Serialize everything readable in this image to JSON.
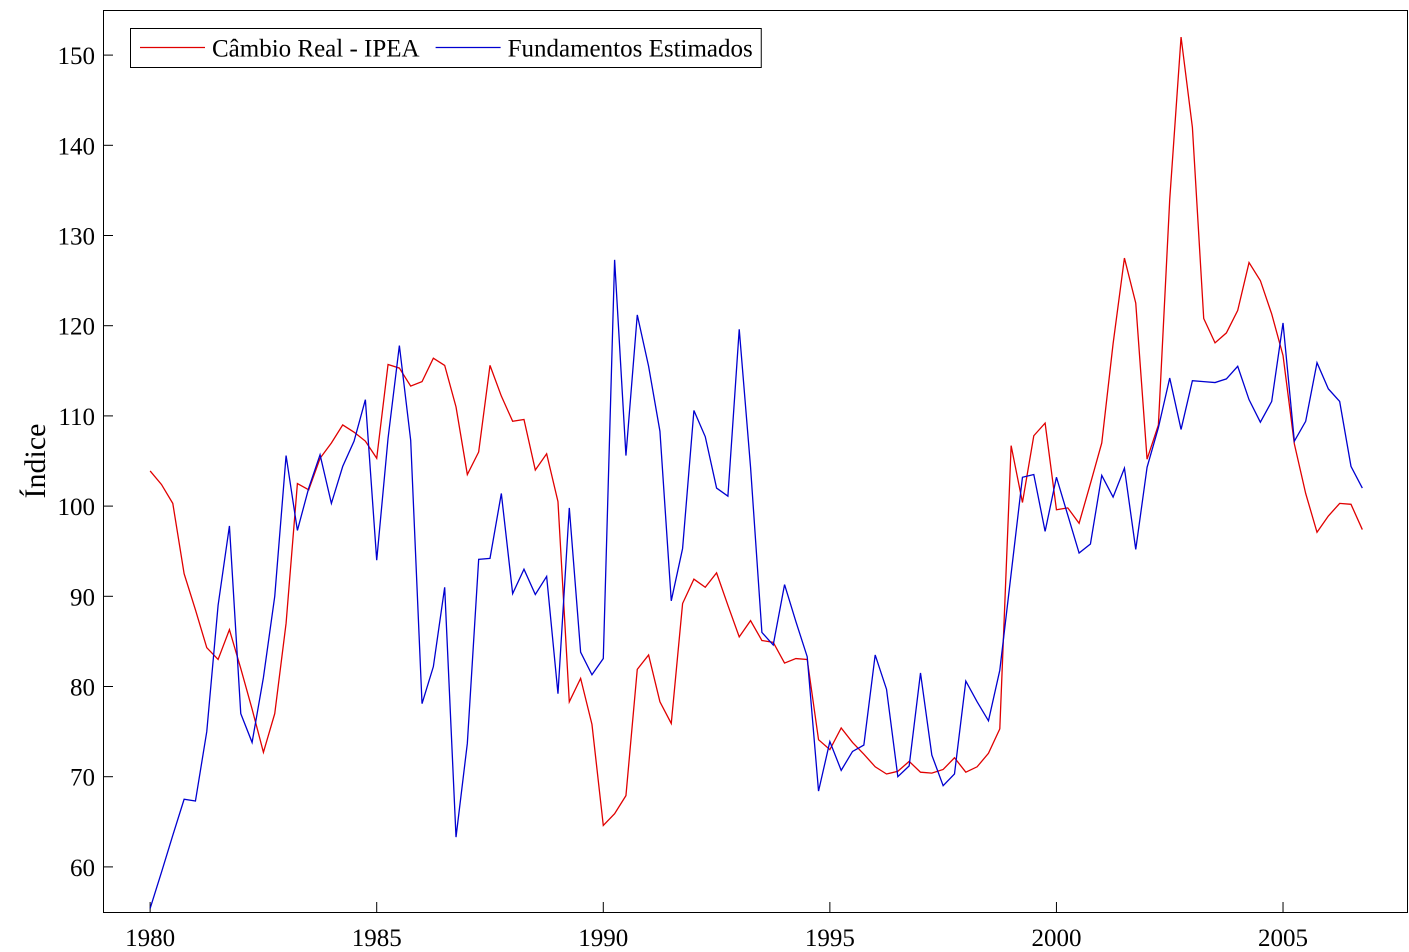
{
  "chart_data": {
    "type": "line",
    "y_label": "Índice",
    "xlim": [
      1978.96,
      2007.78
    ],
    "ylim": [
      55,
      155
    ],
    "xticks": [
      1980,
      1985,
      1990,
      1995,
      2000,
      2005
    ],
    "yticks": [
      60,
      70,
      80,
      90,
      100,
      110,
      120,
      130,
      140,
      150
    ],
    "legend": "top-left",
    "x": [
      1980,
      1980.25,
      1980.5,
      1980.75,
      1981,
      1981.25,
      1981.5,
      1981.75,
      1982,
      1982.25,
      1982.5,
      1982.75,
      1983,
      1983.25,
      1983.5,
      1983.75,
      1984,
      1984.25,
      1984.5,
      1984.75,
      1985,
      1985.25,
      1985.5,
      1985.75,
      1986,
      1986.25,
      1986.5,
      1986.75,
      1987,
      1987.25,
      1987.5,
      1987.75,
      1988,
      1988.25,
      1988.5,
      1988.75,
      1989,
      1989.25,
      1989.5,
      1989.75,
      1990,
      1990.25,
      1990.5,
      1990.75,
      1991,
      1991.25,
      1991.5,
      1991.75,
      1992,
      1992.25,
      1992.5,
      1992.75,
      1993,
      1993.25,
      1993.5,
      1993.75,
      1994,
      1994.25,
      1994.5,
      1994.75,
      1995,
      1995.25,
      1995.5,
      1995.75,
      1996,
      1996.25,
      1996.5,
      1996.75,
      1997,
      1997.25,
      1997.5,
      1997.75,
      1998,
      1998.25,
      1998.5,
      1998.75,
      1999,
      1999.25,
      1999.5,
      1999.75,
      2000,
      2000.25,
      2000.5,
      2000.75,
      2001,
      2001.25,
      2001.5,
      2001.75,
      2002,
      2002.25,
      2002.5,
      2002.75,
      2003,
      2003.25,
      2003.5,
      2003.75,
      2004,
      2004.25,
      2004.5,
      2004.75,
      2005,
      2005.25,
      2005.5,
      2005.75,
      2006,
      2006.25,
      2006.5,
      2006.75
    ],
    "series": [
      {
        "name": "Câmbio Real - IPEA",
        "color": "#e00000",
        "values": [
          103.9,
          102.4,
          100.3,
          92.5,
          88.5,
          84.3,
          83,
          86.3,
          82,
          77.5,
          72.7,
          77,
          87,
          102.5,
          101.8,
          105.3,
          107,
          109,
          108.2,
          107.2,
          105.3,
          115.7,
          115.3,
          113.3,
          113.8,
          116.4,
          115.6,
          111,
          103.5,
          106,
          115.6,
          112.2,
          109.4,
          109.6,
          104,
          105.8,
          100.5,
          78.3,
          80.9,
          75.8,
          64.6,
          65.9,
          67.9,
          81.9,
          83.5,
          78.3,
          75.9,
          89.2,
          91.9,
          91,
          92.6,
          89,
          85.5,
          87.3,
          85.1,
          84.9,
          82.6,
          83.1,
          83,
          74.1,
          73,
          75.4,
          73.8,
          72.5,
          71.1,
          70.3,
          70.6,
          71.7,
          70.5,
          70.4,
          70.8,
          72.1,
          70.5,
          71.1,
          72.6,
          75.3,
          106.7,
          100.4,
          107.8,
          109.2,
          99.6,
          99.8,
          98.1,
          102.5,
          107,
          118,
          127.5,
          122.5,
          105.2,
          109,
          134,
          152,
          142,
          120.8,
          118.1,
          119.2,
          121.7,
          127,
          125,
          121.3,
          116.7,
          106.9,
          101.4,
          97.1,
          98.9,
          100.3,
          100.2,
          97.4
        ]
      },
      {
        "name": "Fundamentos Estimados",
        "color": "#0000d0",
        "values": [
          55.4,
          59.4,
          63.5,
          67.5,
          67.3,
          75,
          89,
          97.8,
          77,
          73.8,
          81,
          90,
          105.6,
          97.3,
          102,
          105.7,
          100.3,
          104.4,
          107.2,
          111.8,
          94,
          107.5,
          117.8,
          107.3,
          78.1,
          82.2,
          91,
          63.3,
          73.7,
          94.1,
          94.2,
          101.4,
          90.3,
          93,
          90.2,
          92.2,
          79.2,
          99.8,
          83.8,
          81.3,
          83.1,
          127.3,
          105.6,
          121.2,
          115.5,
          108.3,
          89.5,
          95.3,
          110.6,
          107.7,
          102,
          101.1,
          119.6,
          104.3,
          86,
          84.6,
          91.3,
          87.2,
          83.3,
          68.4,
          73.9,
          70.7,
          72.8,
          73.5,
          83.5,
          79.7,
          70,
          71.2,
          81.5,
          72.4,
          69,
          70.3,
          80.6,
          78.3,
          76.2,
          81.8,
          92.5,
          103.2,
          103.5,
          97.2,
          103.2,
          99,
          94.8,
          95.8,
          103.4,
          101,
          104.2,
          95.2,
          104.3,
          108.7,
          114.2,
          108.5,
          113.9,
          113.8,
          113.7,
          114.1,
          115.5,
          111.8,
          109.3,
          111.6,
          120.3,
          107.2,
          109.4,
          115.9,
          113,
          111.6,
          104.4,
          102
        ]
      }
    ]
  }
}
